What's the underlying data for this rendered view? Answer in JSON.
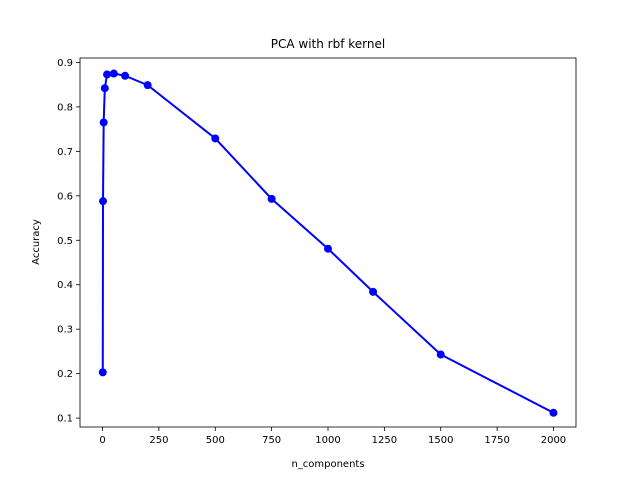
{
  "chart_data": {
    "type": "line",
    "title": "PCA with rbf kernel",
    "xlabel": "n_components",
    "ylabel": "Accuracy",
    "xlim": [
      -100,
      2100
    ],
    "ylim": [
      0.08,
      0.91
    ],
    "xticks": [
      0,
      250,
      500,
      750,
      1000,
      1250,
      1500,
      1750,
      2000
    ],
    "yticks": [
      0.1,
      0.2,
      0.3,
      0.4,
      0.5,
      0.6,
      0.7,
      0.8,
      0.9
    ],
    "xtick_labels": [
      "0",
      "250",
      "500",
      "750",
      "1000",
      "1250",
      "1500",
      "1750",
      "2000"
    ],
    "ytick_labels": [
      "0.1",
      "0.2",
      "0.3",
      "0.4",
      "0.5",
      "0.6",
      "0.7",
      "0.8",
      "0.9"
    ],
    "grid": false,
    "series": [
      {
        "color": "#0000ff",
        "marker": "circle",
        "x": [
          1,
          2,
          5,
          10,
          20,
          50,
          100,
          200,
          500,
          750,
          1000,
          1200,
          1500,
          2000
        ],
        "y": [
          0.203,
          0.588,
          0.765,
          0.842,
          0.873,
          0.875,
          0.87,
          0.849,
          0.729,
          0.593,
          0.481,
          0.384,
          0.243,
          0.112
        ]
      }
    ]
  }
}
